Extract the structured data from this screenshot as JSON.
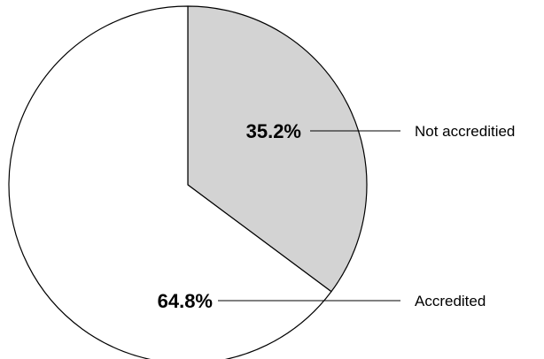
{
  "chart_data": {
    "type": "pie",
    "title": "",
    "slices": [
      {
        "label": "Not accreditied",
        "value": 35.2,
        "value_label": "35.2%",
        "color": "#d3d3d3"
      },
      {
        "label": "Accredited",
        "value": 64.8,
        "value_label": "64.8%",
        "color": "#ffffff"
      }
    ],
    "start_angle": "12 o'clock",
    "direction": "clockwise",
    "legend": "none"
  }
}
